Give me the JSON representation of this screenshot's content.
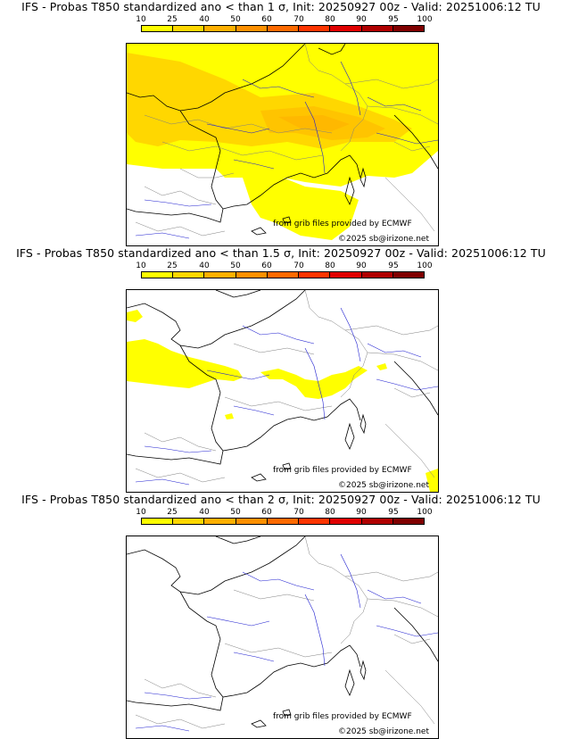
{
  "legend": {
    "labels": [
      "10",
      "25",
      "40",
      "50",
      "60",
      "70",
      "80",
      "90",
      "95",
      "100"
    ],
    "colors": [
      "#ffff00",
      "#ffd700",
      "#ffb000",
      "#ff9000",
      "#ff6a00",
      "#ff3500",
      "#e00000",
      "#b00000",
      "#800000"
    ]
  },
  "panels": [
    {
      "title": "IFS - Probas T850  standardized ano < than 1 σ, Init: 20250927 00z - Valid: 20251006:12 TU",
      "credit_source": "from grib files provided by ECMWF",
      "credit_copyright": "©2025 sb@irizone.net"
    },
    {
      "title": "IFS - Probas T850  standardized ano < than 1.5 σ, Init: 20250927 00z - Valid: 20251006:12 TU",
      "credit_source": "from grib files provided by ECMWF",
      "credit_copyright": "©2025 sb@irizone.net"
    },
    {
      "title": "IFS - Probas T850  standardized ano < than 2 σ, Init: 20250927 00z - Valid: 20251006:12 TU",
      "credit_source": "from grib files provided by ECMWF",
      "credit_copyright": "©2025 sb@irizone.net"
    }
  ],
  "map_style": {
    "land_outline_color": "#000000",
    "border_color": "#808080",
    "river_color": "#2020d0"
  }
}
